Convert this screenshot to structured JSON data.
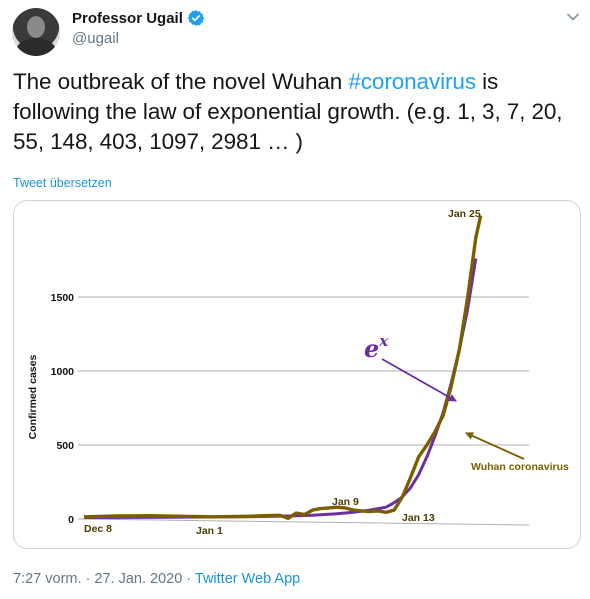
{
  "user": {
    "display_name": "Professor Ugail",
    "handle": "@ugail"
  },
  "icons": {
    "verified": "verified-badge-icon",
    "menu": "chevron-down-icon",
    "avatar": "profile-photo"
  },
  "colors": {
    "link": "#1da1f2",
    "exp_curve": "#6b2fa0",
    "wuhan_curve": "#7a5e00",
    "grid": "#b0b0b0"
  },
  "tweet": {
    "text_pre": "The outbreak of the novel Wuhan ",
    "hashtag": "#coronavirus",
    "text_post": " is following the law of exponential growth.  (e.g. 1, 3, 7, 20, 55, 148, 403, 1097, 2981 … )",
    "translate": "Tweet übersetzen"
  },
  "meta": {
    "time": "7:27 vorm.",
    "separator": " · ",
    "date": "27. Jan. 2020",
    "app": "Twitter Web App"
  },
  "chart_data": {
    "type": "line",
    "ylabel": "Confirmed cases",
    "yticks": [
      0,
      500,
      1000,
      1500
    ],
    "ylim": [
      0,
      2000
    ],
    "xlim": [
      0,
      49
    ],
    "grid": true,
    "date_labels": [
      {
        "text": "Dec 8",
        "x": 0
      },
      {
        "text": "Jan 1",
        "x": 24
      },
      {
        "text": "Jan 9",
        "x": 32
      },
      {
        "text": "Jan 13",
        "x": 36
      },
      {
        "text": "Jan 25",
        "x": 48
      }
    ],
    "series": [
      {
        "name": "Wuhan coronavirus",
        "x": [
          0,
          4,
          8,
          12,
          16,
          20,
          22,
          24,
          25,
          26,
          27,
          28,
          29,
          30,
          31,
          32,
          33,
          34,
          35,
          36,
          37,
          38,
          39,
          40,
          41,
          42,
          43,
          44,
          45,
          46,
          47,
          48,
          48.6
        ],
        "values": [
          15,
          20,
          22,
          18,
          15,
          18,
          22,
          25,
          5,
          40,
          30,
          60,
          70,
          75,
          80,
          75,
          60,
          55,
          50,
          55,
          45,
          60,
          150,
          280,
          420,
          500,
          590,
          700,
          900,
          1150,
          1500,
          1900,
          2050
        ]
      },
      {
        "name": "e^x",
        "x": [
          0,
          10,
          20,
          25,
          28,
          31,
          33,
          35,
          37,
          38,
          39,
          40,
          41,
          42,
          43,
          44,
          45,
          46,
          47,
          48
        ],
        "values": [
          10,
          12,
          15,
          20,
          25,
          35,
          45,
          60,
          80,
          110,
          150,
          210,
          300,
          420,
          560,
          720,
          920,
          1150,
          1420,
          1760
        ]
      }
    ],
    "annotations": [
      {
        "text": "e",
        "sup": "x"
      },
      {
        "text": "Wuhan coronavirus"
      }
    ]
  }
}
